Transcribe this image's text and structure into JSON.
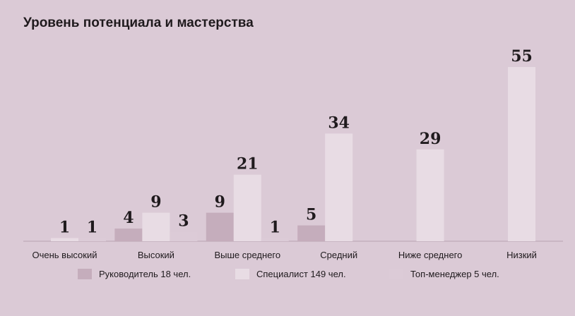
{
  "chart_data": {
    "type": "bar",
    "title": "Уровень потенциала и мастерства",
    "categories": [
      "Очень высокий",
      "Высокий",
      "Выше среднего",
      "Средний",
      "Ниже среднего",
      "Низкий"
    ],
    "series": [
      {
        "name": "Руководитель 18 чел.",
        "color": "#c5adbc",
        "values": [
          0,
          4,
          9,
          5,
          0,
          0
        ]
      },
      {
        "name": "Специалист 149 чел.",
        "color": "#e8dce4",
        "values": [
          1,
          9,
          21,
          34,
          29,
          55
        ]
      },
      {
        "name": "Топ-менеджер 5 чел.",
        "color": "#dccbd7",
        "values": [
          1,
          3,
          1,
          0,
          0,
          0
        ]
      }
    ],
    "ylim": [
      0,
      55
    ],
    "grid": false,
    "legend_position": "bottom"
  }
}
